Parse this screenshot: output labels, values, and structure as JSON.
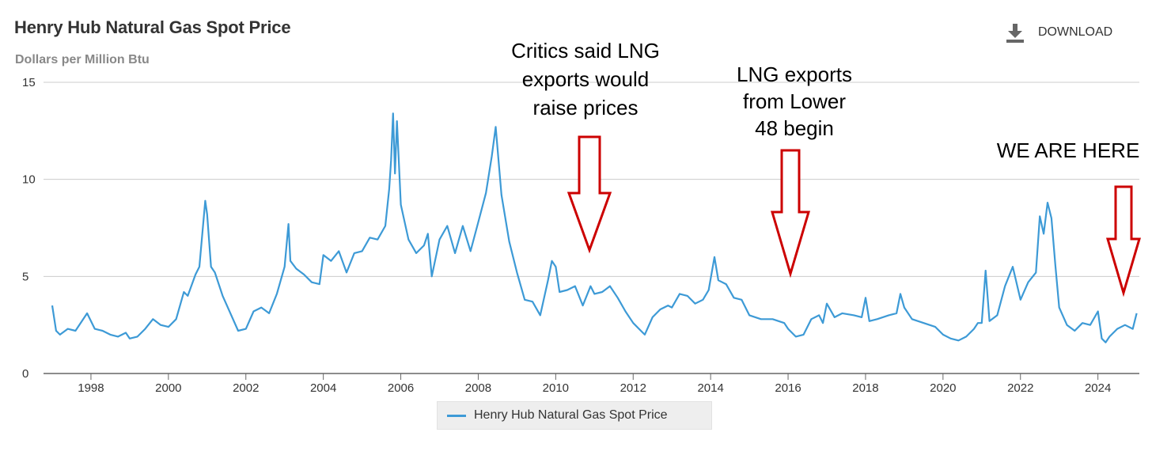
{
  "header": {
    "title": "Henry Hub Natural Gas Spot Price",
    "subtitle": "Dollars per Million Btu",
    "download_label": "DOWNLOAD"
  },
  "colors": {
    "series": "#3d9ad6",
    "annotation_arrow": "#cc0000",
    "gridline": "#cccccc"
  },
  "legend": {
    "label": "Henry Hub Natural Gas Spot Price"
  },
  "annotations": [
    {
      "lines": [
        "Critics said LNG",
        "exports would",
        "raise prices"
      ],
      "arrow_year": 2011.1
    },
    {
      "lines": [
        "LNG exports",
        "from Lower",
        "48 begin"
      ],
      "arrow_year": 2016.25
    },
    {
      "lines": [
        "WE ARE HERE"
      ],
      "arrow_year": 2024.9
    }
  ],
  "chart_data": {
    "type": "line",
    "title": "Henry Hub Natural Gas Spot Price",
    "ylabel": "Dollars per Million Btu",
    "xlabel": "",
    "ylim": [
      0,
      15
    ],
    "xlim": [
      1997,
      2025.3
    ],
    "yticks": [
      "0",
      "5",
      "10",
      "15"
    ],
    "xticks": [
      "1998",
      "2000",
      "2002",
      "2004",
      "2006",
      "2008",
      "2010",
      "2012",
      "2014",
      "2016",
      "2018",
      "2020",
      "2022",
      "2024"
    ],
    "grid": true,
    "legend_position": "bottom-center",
    "series": [
      {
        "name": "Henry Hub Natural Gas Spot Price",
        "x": [
          1997.0,
          1997.1,
          1997.2,
          1997.4,
          1997.6,
          1997.9,
          1998.1,
          1998.3,
          1998.5,
          1998.7,
          1998.9,
          1999.0,
          1999.2,
          1999.4,
          1999.6,
          1999.8,
          2000.0,
          2000.2,
          2000.4,
          2000.5,
          2000.7,
          2000.8,
          2000.95,
          2001.0,
          2001.1,
          2001.2,
          2001.4,
          2001.6,
          2001.8,
          2002.0,
          2002.2,
          2002.4,
          2002.6,
          2002.8,
          2003.0,
          2003.1,
          2003.15,
          2003.3,
          2003.5,
          2003.7,
          2003.9,
          2004.0,
          2004.2,
          2004.4,
          2004.6,
          2004.8,
          2005.0,
          2005.2,
          2005.4,
          2005.6,
          2005.7,
          2005.75,
          2005.8,
          2005.85,
          2005.9,
          2006.0,
          2006.2,
          2006.4,
          2006.6,
          2006.7,
          2006.8,
          2007.0,
          2007.2,
          2007.4,
          2007.6,
          2007.8,
          2008.0,
          2008.2,
          2008.35,
          2008.45,
          2008.6,
          2008.8,
          2009.0,
          2009.2,
          2009.4,
          2009.6,
          2009.8,
          2009.9,
          2010.0,
          2010.1,
          2010.3,
          2010.5,
          2010.7,
          2010.9,
          2011.0,
          2011.2,
          2011.4,
          2011.6,
          2011.8,
          2012.0,
          2012.2,
          2012.3,
          2012.5,
          2012.7,
          2012.9,
          2013.0,
          2013.2,
          2013.4,
          2013.6,
          2013.8,
          2013.95,
          2014.1,
          2014.2,
          2014.4,
          2014.6,
          2014.8,
          2015.0,
          2015.3,
          2015.6,
          2015.9,
          2016.0,
          2016.2,
          2016.4,
          2016.6,
          2016.8,
          2016.9,
          2017.0,
          2017.2,
          2017.4,
          2017.7,
          2017.9,
          2018.0,
          2018.1,
          2018.3,
          2018.6,
          2018.8,
          2018.9,
          2019.0,
          2019.2,
          2019.5,
          2019.8,
          2020.0,
          2020.2,
          2020.4,
          2020.6,
          2020.8,
          2020.9,
          2021.0,
          2021.1,
          2021.2,
          2021.4,
          2021.6,
          2021.8,
          2022.0,
          2022.2,
          2022.4,
          2022.5,
          2022.6,
          2022.7,
          2022.8,
          2022.9,
          2023.0,
          2023.2,
          2023.4,
          2023.6,
          2023.8,
          2024.0,
          2024.1,
          2024.2,
          2024.3,
          2024.5,
          2024.7,
          2024.9,
          2025.0
        ],
        "values": [
          3.5,
          2.2,
          2.0,
          2.3,
          2.2,
          3.1,
          2.3,
          2.2,
          2.0,
          1.9,
          2.1,
          1.8,
          1.9,
          2.3,
          2.8,
          2.5,
          2.4,
          2.8,
          4.2,
          4.0,
          5.1,
          5.5,
          8.9,
          8.2,
          5.5,
          5.2,
          4.0,
          3.1,
          2.2,
          2.3,
          3.2,
          3.4,
          3.1,
          4.1,
          5.5,
          7.7,
          5.8,
          5.4,
          5.1,
          4.7,
          4.6,
          6.1,
          5.8,
          6.3,
          5.2,
          6.2,
          6.3,
          7.0,
          6.9,
          7.6,
          9.5,
          11.0,
          13.4,
          10.3,
          13.0,
          8.7,
          6.9,
          6.2,
          6.6,
          7.2,
          5.0,
          6.9,
          7.6,
          6.2,
          7.6,
          6.3,
          7.8,
          9.3,
          11.2,
          12.7,
          9.2,
          6.8,
          5.2,
          3.8,
          3.7,
          3.0,
          4.8,
          5.8,
          5.5,
          4.2,
          4.3,
          4.5,
          3.5,
          4.5,
          4.1,
          4.2,
          4.5,
          3.9,
          3.2,
          2.6,
          2.2,
          2.0,
          2.9,
          3.3,
          3.5,
          3.4,
          4.1,
          4.0,
          3.6,
          3.8,
          4.3,
          6.0,
          4.8,
          4.6,
          3.9,
          3.8,
          3.0,
          2.8,
          2.8,
          2.6,
          2.3,
          1.9,
          2.0,
          2.8,
          3.0,
          2.6,
          3.6,
          2.9,
          3.1,
          3.0,
          2.9,
          3.9,
          2.7,
          2.8,
          3.0,
          3.1,
          4.1,
          3.4,
          2.8,
          2.6,
          2.4,
          2.0,
          1.8,
          1.7,
          1.9,
          2.3,
          2.6,
          2.6,
          5.3,
          2.7,
          3.0,
          4.5,
          5.5,
          3.8,
          4.7,
          5.2,
          8.1,
          7.2,
          8.8,
          8.0,
          5.6,
          3.4,
          2.5,
          2.2,
          2.6,
          2.5,
          3.2,
          1.8,
          1.6,
          1.9,
          2.3,
          2.5,
          2.3,
          3.1
        ]
      }
    ]
  }
}
